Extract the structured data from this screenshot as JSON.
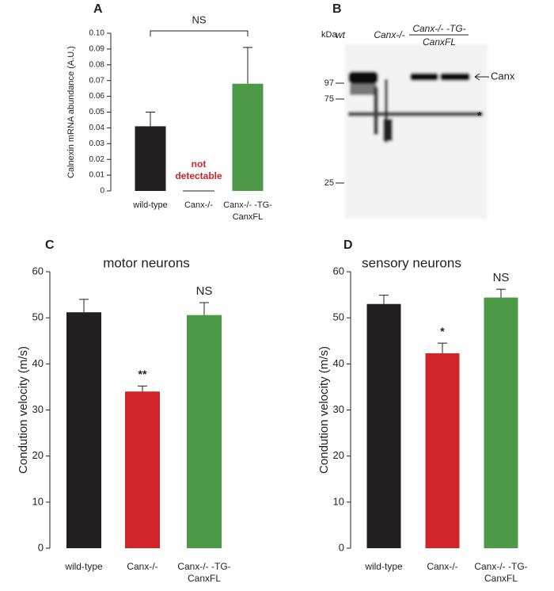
{
  "chart_data": [
    {
      "type": "bar",
      "panel_label": "A",
      "y_label": "Calnexin mRNA abundance (A.U.)",
      "categories": [
        "wild-type",
        "Canx-/-",
        "Canx-/- -TG-CanxFL"
      ],
      "values": [
        0.041,
        null,
        0.068
      ],
      "errors": [
        0.009,
        null,
        0.023
      ],
      "colors": [
        "#231f20",
        "#d0232a",
        "#4c9a47"
      ],
      "ylim": [
        0,
        0.1
      ],
      "yticks": [
        0,
        0.01,
        0.02,
        0.03,
        0.04,
        0.05,
        0.06,
        0.07,
        0.08,
        0.09,
        {
          "value": 0.1,
          "label": "0.10"
        }
      ],
      "bracket_label": "NS",
      "na_label": "not detectable"
    },
    {
      "type": "bar",
      "panel_label": "C",
      "title": "motor neurons",
      "y_label": "Condution velocity (m/s)",
      "categories": [
        "wild-type",
        "Canx-/-",
        "Canx-/- -TG-CanxFL"
      ],
      "values": [
        51.2,
        34,
        50.6
      ],
      "errors": [
        2.8,
        1.2,
        2.7
      ],
      "colors": [
        "#231f20",
        "#d0232a",
        "#4c9a47"
      ],
      "ylim": [
        0,
        60
      ],
      "yticks": [
        0,
        10,
        20,
        30,
        40,
        50,
        60
      ],
      "significance": [
        null,
        "**",
        "NS"
      ]
    },
    {
      "type": "bar",
      "panel_label": "D",
      "title": "sensory neurons",
      "y_label": "Condution velocity (m/s)",
      "categories": [
        "wild-type",
        "Canx-/-",
        "Canx-/- -TG-CanxFL"
      ],
      "values": [
        53,
        42.3,
        54.4
      ],
      "errors": [
        1.9,
        2.2,
        1.8
      ],
      "colors": [
        "#231f20",
        "#d0232a",
        "#4c9a47"
      ],
      "ylim": [
        0,
        60
      ],
      "yticks": [
        0,
        10,
        20,
        30,
        40,
        50,
        60
      ],
      "significance": [
        null,
        "*",
        "NS"
      ]
    }
  ],
  "blot": {
    "panel_label": "B",
    "lanes": [
      "wt",
      "Canx-/-",
      "Canx-/- -TG-CanxFL"
    ],
    "unit": "kDa",
    "markers": [
      97,
      75,
      25
    ],
    "band_label": "Canx",
    "nonspecific_label": "*"
  }
}
